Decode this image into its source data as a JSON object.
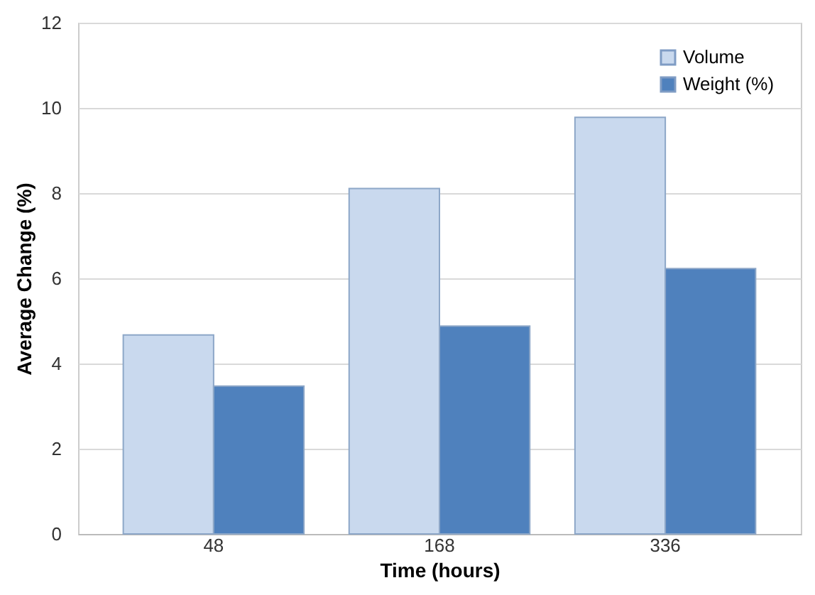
{
  "chart_data": {
    "type": "bar",
    "xlabel": "Time (hours)",
    "ylabel": "Average Change (%)",
    "categories": [
      "48",
      "168",
      "336"
    ],
    "series": [
      {
        "name": "Volume",
        "color": "#c9d9ee",
        "values": [
          4.67,
          8.11,
          9.78
        ]
      },
      {
        "name": "Weight (%)",
        "color": "#4f81bd",
        "values": [
          3.47,
          4.88,
          6.23
        ]
      }
    ],
    "ylim": [
      0,
      12
    ],
    "yticks": [
      0,
      2,
      4,
      6,
      8,
      10,
      12
    ],
    "grid": "y",
    "legend": "top right"
  }
}
